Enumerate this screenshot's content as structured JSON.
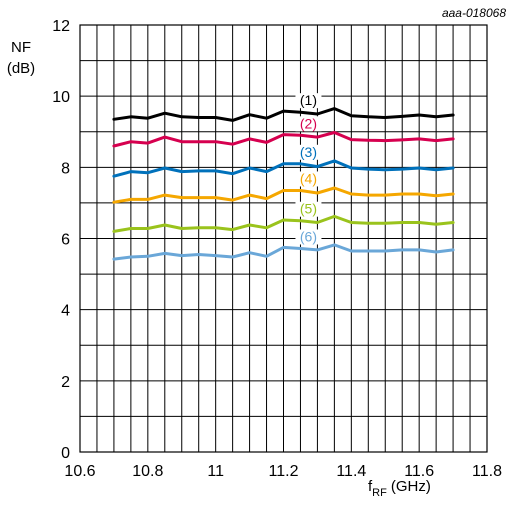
{
  "figure_id": "aaa-018068",
  "chart_data": {
    "type": "line",
    "ylabel_line1": "NF",
    "ylabel_line2": "(dB)",
    "xlabel_main": "f",
    "xlabel_sub": "RF",
    "xlabel_unit": "(GHz)",
    "xlim": [
      10.6,
      11.8
    ],
    "ylim": [
      0,
      12
    ],
    "grid": true,
    "x_ticks": [
      10.6,
      10.8,
      11,
      11.2,
      11.4,
      11.6,
      11.8
    ],
    "x_tick_labels": [
      "10.6",
      "10.8",
      "11",
      "11.2",
      "11.4",
      "11.6",
      "11.8"
    ],
    "y_ticks": [
      0,
      2,
      4,
      6,
      8,
      10,
      12
    ],
    "y_tick_labels": [
      "0",
      "2",
      "4",
      "6",
      "8",
      "10",
      "12"
    ],
    "x": [
      10.7,
      10.75,
      10.8,
      10.85,
      10.9,
      10.95,
      11.0,
      11.05,
      11.1,
      11.15,
      11.2,
      11.25,
      11.3,
      11.35,
      11.4,
      11.45,
      11.5,
      11.55,
      11.6,
      11.65,
      11.7
    ],
    "series": [
      {
        "name": "(1)",
        "color": "#000000",
        "label_x": 11.25,
        "values": [
          9.35,
          9.42,
          9.38,
          9.52,
          9.42,
          9.4,
          9.4,
          9.32,
          9.48,
          9.38,
          9.58,
          9.55,
          9.5,
          9.65,
          9.45,
          9.42,
          9.4,
          9.43,
          9.47,
          9.42,
          9.47
        ]
      },
      {
        "name": "(2)",
        "color": "#d6004f",
        "label_x": 11.25,
        "values": [
          8.6,
          8.72,
          8.68,
          8.85,
          8.72,
          8.72,
          8.72,
          8.65,
          8.8,
          8.7,
          8.92,
          8.9,
          8.85,
          8.98,
          8.78,
          8.76,
          8.75,
          8.77,
          8.8,
          8.75,
          8.8
        ]
      },
      {
        "name": "(3)",
        "color": "#0071bb",
        "label_x": 11.25,
        "values": [
          7.75,
          7.88,
          7.85,
          7.98,
          7.88,
          7.9,
          7.9,
          7.82,
          7.98,
          7.88,
          8.1,
          8.1,
          8.02,
          8.18,
          7.98,
          7.95,
          7.93,
          7.95,
          7.98,
          7.93,
          7.98
        ]
      },
      {
        "name": "(4)",
        "color": "#f5a700",
        "label_x": 11.25,
        "values": [
          7.02,
          7.1,
          7.1,
          7.22,
          7.15,
          7.15,
          7.15,
          7.08,
          7.22,
          7.12,
          7.35,
          7.35,
          7.28,
          7.42,
          7.25,
          7.22,
          7.22,
          7.25,
          7.25,
          7.2,
          7.25
        ]
      },
      {
        "name": "(5)",
        "color": "#9ac31c",
        "label_x": 11.25,
        "values": [
          6.2,
          6.28,
          6.28,
          6.38,
          6.28,
          6.3,
          6.3,
          6.25,
          6.38,
          6.3,
          6.52,
          6.5,
          6.45,
          6.62,
          6.45,
          6.43,
          6.43,
          6.45,
          6.45,
          6.4,
          6.45
        ]
      },
      {
        "name": "(6)",
        "color": "#6aa7d8",
        "label_x": 11.25,
        "values": [
          5.42,
          5.48,
          5.5,
          5.58,
          5.52,
          5.55,
          5.52,
          5.48,
          5.6,
          5.5,
          5.75,
          5.72,
          5.68,
          5.82,
          5.65,
          5.65,
          5.65,
          5.68,
          5.68,
          5.62,
          5.68
        ]
      }
    ]
  }
}
